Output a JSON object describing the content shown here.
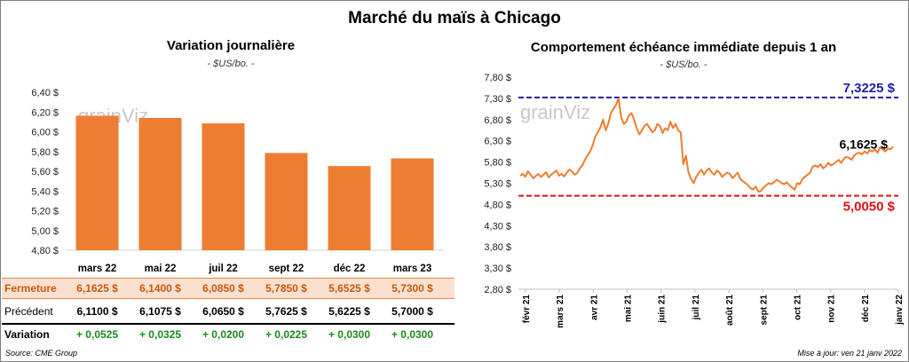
{
  "title": "Marché du maïs à Chicago",
  "watermark": "grainViz",
  "source": "Source: CME Group",
  "updated": "Mise à jour: ven 21 janv 2022",
  "colors": {
    "bar": "#ed7d31",
    "line": "#ed7d31",
    "high": "#1f1fa0",
    "low": "#e01010",
    "current": "#000000",
    "variation": "#1a8a1a"
  },
  "chart_data": [
    {
      "type": "bar",
      "title": "Variation journalière",
      "subtitle": "- $US/bo. -",
      "categories": [
        "mars 22",
        "mai 22",
        "juil 22",
        "sept 22",
        "déc 22",
        "mars 23"
      ],
      "values": [
        6.1625,
        6.14,
        6.085,
        5.785,
        5.6525,
        5.73
      ],
      "ylim": [
        4.8,
        6.4
      ],
      "yticks": [
        "4,80 $",
        "5,00 $",
        "5,20 $",
        "5,40 $",
        "5,60 $",
        "5,80 $",
        "6,00 $",
        "6,20 $",
        "6,40 $"
      ],
      "table": {
        "rows": [
          {
            "label": "Fermeture",
            "values": [
              "6,1625 $",
              "6,1400 $",
              "6,0850 $",
              "5,7850 $",
              "5,6525 $",
              "5,7300 $"
            ]
          },
          {
            "label": "Précédent",
            "values": [
              "6,1100 $",
              "6,1075 $",
              "6,0650 $",
              "5,7625 $",
              "5,6225 $",
              "5,7000 $"
            ]
          },
          {
            "label": "Variation",
            "values": [
              "+ 0,0525",
              "+ 0,0325",
              "+ 0,0200",
              "+ 0,0225",
              "+ 0,0300",
              "+ 0,0300"
            ]
          }
        ]
      }
    },
    {
      "type": "line",
      "title": "Comportement échéance immédiate depuis 1 an",
      "subtitle": "- $US/bo. -",
      "ylim": [
        2.8,
        7.8
      ],
      "yticks": [
        "2,80 $",
        "3,30 $",
        "3,80 $",
        "4,30 $",
        "4,80 $",
        "5,30 $",
        "5,80 $",
        "6,30 $",
        "6,80 $",
        "7,30 $",
        "7,80 $"
      ],
      "xticks": [
        "févr 21",
        "mars 21",
        "avr 21",
        "mai 21",
        "juin 21",
        "juil 21",
        "août 21",
        "sept 21",
        "oct 21",
        "nov 21",
        "déc 21",
        "janv 22"
      ],
      "high": {
        "value": 7.3225,
        "label": "7,3225 $"
      },
      "low": {
        "value": 5.005,
        "label": "5,0050 $"
      },
      "current": {
        "value": 6.1625,
        "label": "6,1625 $"
      },
      "series": [
        {
          "name": "Échéance immédiate",
          "values": [
            5.48,
            5.52,
            5.45,
            5.58,
            5.5,
            5.42,
            5.47,
            5.52,
            5.45,
            5.5,
            5.56,
            5.44,
            5.5,
            5.55,
            5.6,
            5.48,
            5.52,
            5.46,
            5.55,
            5.62,
            5.58,
            5.5,
            5.54,
            5.65,
            5.72,
            5.85,
            5.95,
            6.05,
            6.2,
            6.4,
            6.5,
            6.62,
            6.8,
            6.55,
            6.7,
            6.95,
            7.05,
            7.15,
            7.3,
            6.85,
            6.7,
            6.75,
            6.9,
            6.95,
            6.8,
            6.6,
            6.45,
            6.55,
            6.65,
            6.7,
            6.6,
            6.5,
            6.55,
            6.7,
            6.65,
            6.48,
            6.6,
            6.55,
            6.75,
            6.6,
            6.7,
            6.55,
            6.5,
            5.75,
            5.95,
            5.55,
            5.4,
            5.3,
            5.45,
            5.55,
            5.62,
            5.5,
            5.6,
            5.65,
            5.55,
            5.5,
            5.6,
            5.55,
            5.45,
            5.5,
            5.55,
            5.52,
            5.42,
            5.48,
            5.55,
            5.4,
            5.35,
            5.3,
            5.25,
            5.18,
            5.15,
            5.22,
            5.1,
            5.12,
            5.2,
            5.25,
            5.3,
            5.28,
            5.32,
            5.38,
            5.35,
            5.3,
            5.28,
            5.32,
            5.25,
            5.2,
            5.15,
            5.3,
            5.28,
            5.4,
            5.45,
            5.5,
            5.55,
            5.7,
            5.72,
            5.68,
            5.75,
            5.65,
            5.7,
            5.78,
            5.72,
            5.75,
            5.8,
            5.85,
            5.78,
            5.88,
            5.92,
            5.9,
            5.85,
            5.95,
            6.0,
            6.02,
            5.98,
            6.05,
            6.0,
            6.08,
            6.05,
            6.1,
            6.02,
            6.15,
            6.1,
            6.05,
            6.12,
            6.1,
            6.16
          ]
        }
      ]
    }
  ]
}
